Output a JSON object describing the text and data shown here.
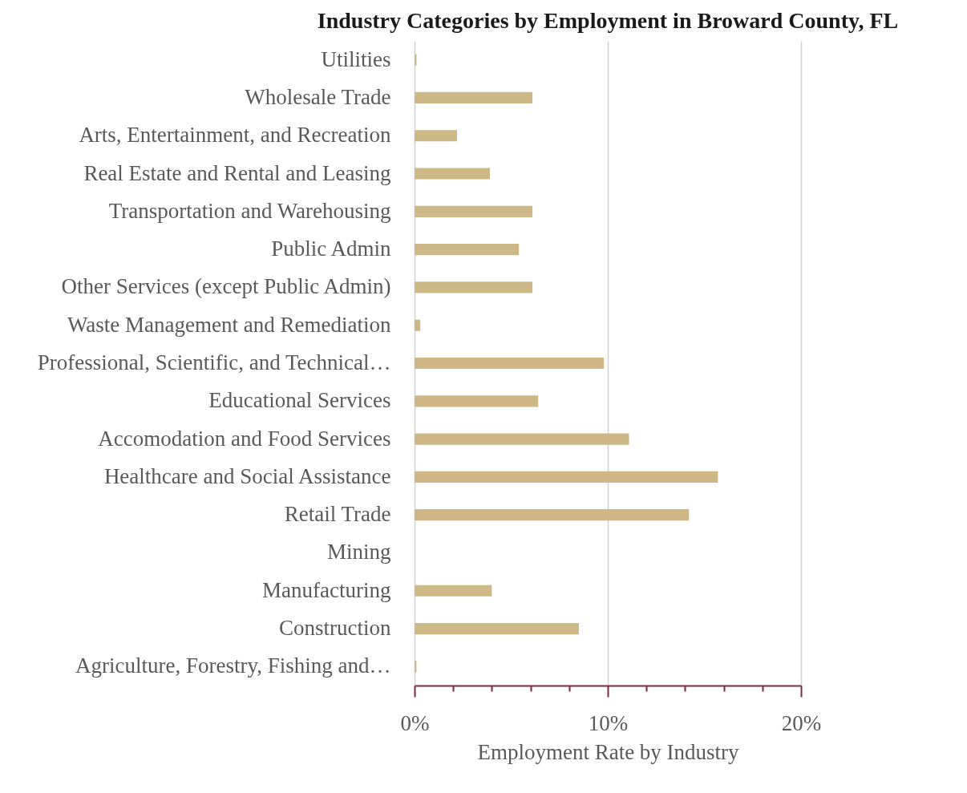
{
  "chart_data": {
    "type": "bar",
    "orientation": "horizontal",
    "title": "Industry Categories by Employment in Broward County, FL",
    "xlabel": "Employment Rate by Industry",
    "categories": [
      "Utilities",
      "Wholesale Trade",
      "Arts, Entertainment, and Recreation",
      "Real Estate and Rental and Leasing",
      "Transportation and Warehousing",
      "Public Admin",
      "Other Services (except Public Admin)",
      "Waste Management and Remediation",
      "Professional, Scientific, and Technical…",
      "Educational Services",
      "Accomodation and Food Services",
      "Healthcare and Social Assistance",
      "Retail Trade",
      "Mining",
      "Manufacturing",
      "Construction",
      "Agriculture, Forestry, Fishing and…"
    ],
    "values": [
      0.1,
      6.1,
      2.2,
      3.9,
      6.1,
      5.4,
      6.1,
      0.3,
      9.8,
      6.4,
      11.1,
      15.7,
      14.2,
      0,
      4.0,
      8.5,
      0.1
    ],
    "color": "#cfb887",
    "xlim": [
      0,
      20
    ],
    "xticks": [
      {
        "value": 0,
        "label": "0%"
      },
      {
        "value": 2,
        "label": null
      },
      {
        "value": 4,
        "label": null
      },
      {
        "value": 6,
        "label": null
      },
      {
        "value": 8,
        "label": null
      },
      {
        "value": 10,
        "label": "10%"
      },
      {
        "value": 12,
        "label": null
      },
      {
        "value": 14,
        "label": null
      },
      {
        "value": 16,
        "label": null
      },
      {
        "value": 18,
        "label": null
      },
      {
        "value": 20,
        "label": "20%"
      }
    ],
    "grid": "x"
  }
}
